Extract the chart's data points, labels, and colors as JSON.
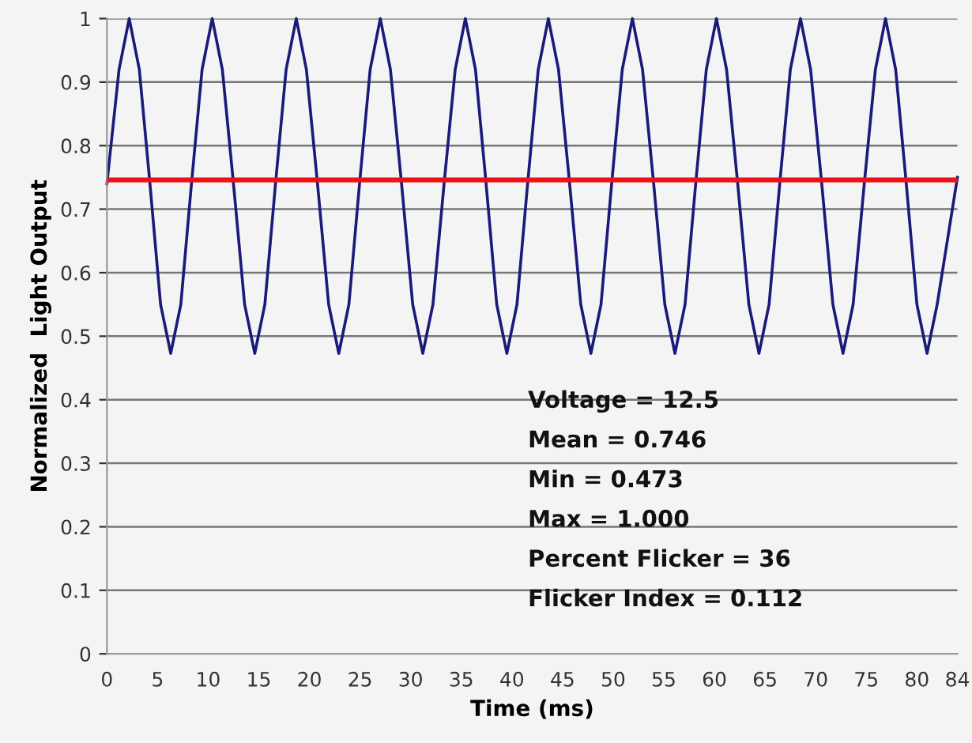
{
  "chart_data": {
    "type": "line",
    "xlabel": "Time (ms)",
    "ylabel": "Normalized  Light Output",
    "x": [
      0,
      1.2,
      2.2,
      3.2,
      4.25,
      5.3,
      6.3,
      7.3,
      8.35,
      9.4,
      10.4,
      11.4,
      12.5,
      13.6,
      14.6,
      15.6,
      16.65,
      17.7,
      18.7,
      19.7,
      20.8,
      21.9,
      22.9,
      23.9,
      24.95,
      26.0,
      27.0,
      28.0,
      29.1,
      30.2,
      31.2,
      32.2,
      33.3,
      34.4,
      35.4,
      36.4,
      37.45,
      38.5,
      39.5,
      40.5,
      41.55,
      42.6,
      43.6,
      44.6,
      45.7,
      46.8,
      47.8,
      48.8,
      49.85,
      50.9,
      51.9,
      52.9,
      54.0,
      55.1,
      56.1,
      57.1,
      58.15,
      59.2,
      60.2,
      61.2,
      62.3,
      63.4,
      64.4,
      65.4,
      66.45,
      67.5,
      68.5,
      69.5,
      70.6,
      71.7,
      72.7,
      73.7,
      74.8,
      75.9,
      76.9,
      77.9,
      78.95,
      80.0,
      81.0,
      82.0,
      84
    ],
    "series": [
      {
        "color": "#1a1a7a",
        "values": [
          0.74,
          0.92,
          1.0,
          0.92,
          0.74,
          0.55,
          0.473,
          0.55,
          0.74,
          0.92,
          1.0,
          0.92,
          0.74,
          0.55,
          0.473,
          0.55,
          0.74,
          0.92,
          1.0,
          0.92,
          0.74,
          0.55,
          0.473,
          0.55,
          0.74,
          0.92,
          1.0,
          0.92,
          0.74,
          0.55,
          0.473,
          0.55,
          0.74,
          0.92,
          1.0,
          0.92,
          0.74,
          0.55,
          0.473,
          0.55,
          0.74,
          0.92,
          1.0,
          0.92,
          0.74,
          0.55,
          0.473,
          0.55,
          0.74,
          0.92,
          1.0,
          0.92,
          0.74,
          0.55,
          0.473,
          0.55,
          0.74,
          0.92,
          1.0,
          0.92,
          0.74,
          0.55,
          0.473,
          0.55,
          0.74,
          0.92,
          1.0,
          0.92,
          0.74,
          0.55,
          0.473,
          0.55,
          0.74,
          0.92,
          1.0,
          0.92,
          0.74,
          0.55,
          0.473,
          0.55,
          0.75
        ]
      }
    ],
    "ref_lines": [
      {
        "axis": "y",
        "value": 0.746,
        "color": "#e8141c"
      }
    ],
    "annotations": [
      "Voltage = 12.5",
      "Mean = 0.746",
      "Min = 0.473",
      "Max = 1.000",
      "Percent Flicker = 36",
      "Flicker Index = 0.112"
    ],
    "xlim": [
      0,
      84
    ],
    "xticks": [
      0,
      5,
      10,
      15,
      20,
      25,
      30,
      35,
      40,
      45,
      50,
      55,
      60,
      65,
      70,
      75,
      80,
      84
    ],
    "ylim": [
      0,
      1
    ],
    "yticks": [
      0,
      0.1,
      0.2,
      0.3,
      0.4,
      0.5,
      0.6,
      0.7,
      0.8,
      0.9,
      1
    ],
    "grid": "y",
    "marker": "none",
    "line_style": "solid"
  }
}
